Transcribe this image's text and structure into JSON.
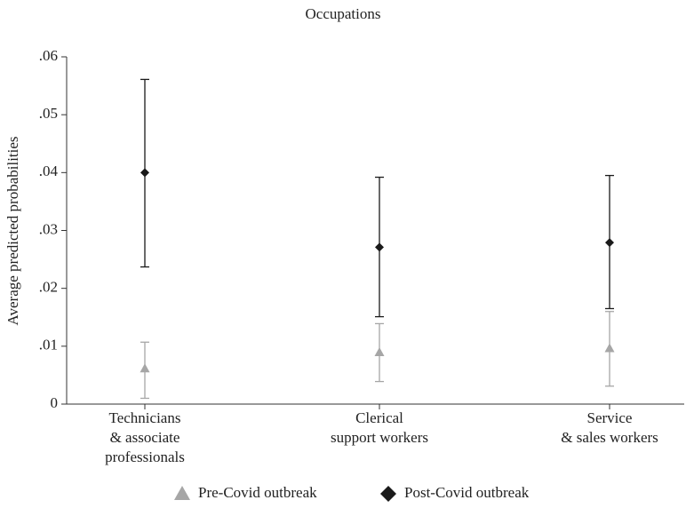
{
  "chart_data": {
    "type": "errorbar",
    "title": "Occupations",
    "ylabel": "Average predicted probabilities",
    "categories": [
      [
        "Technicians",
        "& associate",
        "professionals"
      ],
      [
        "Clerical",
        "support workers"
      ],
      [
        "Service",
        "& sales workers"
      ]
    ],
    "series": [
      {
        "name": "Pre-Covid outbreak",
        "color": "#a6a6a6",
        "marker": "triangle",
        "values": [
          0.0061,
          0.0089,
          0.0096
        ],
        "lower": [
          0.001,
          0.0039,
          0.0031
        ],
        "upper": [
          0.0107,
          0.0139,
          0.016
        ]
      },
      {
        "name": "Post-Covid outbreak",
        "color": "#1a1a1a",
        "marker": "diamond",
        "values": [
          0.04,
          0.0271,
          0.0279
        ],
        "lower": [
          0.0237,
          0.0151,
          0.0165
        ],
        "upper": [
          0.0561,
          0.0392,
          0.0395
        ]
      }
    ],
    "ylim": [
      0,
      0.06
    ],
    "yticks": [
      0,
      {
        "value": 0.01,
        "label": ".01"
      },
      {
        "value": 0.02,
        "label": ".02"
      },
      {
        "value": 0.03,
        "label": ".03"
      },
      {
        "value": 0.04,
        "label": ".04"
      },
      {
        "value": 0.05,
        "label": ".05"
      },
      {
        "value": 0.06,
        "label": ".06"
      }
    ],
    "legend": "bottom"
  }
}
